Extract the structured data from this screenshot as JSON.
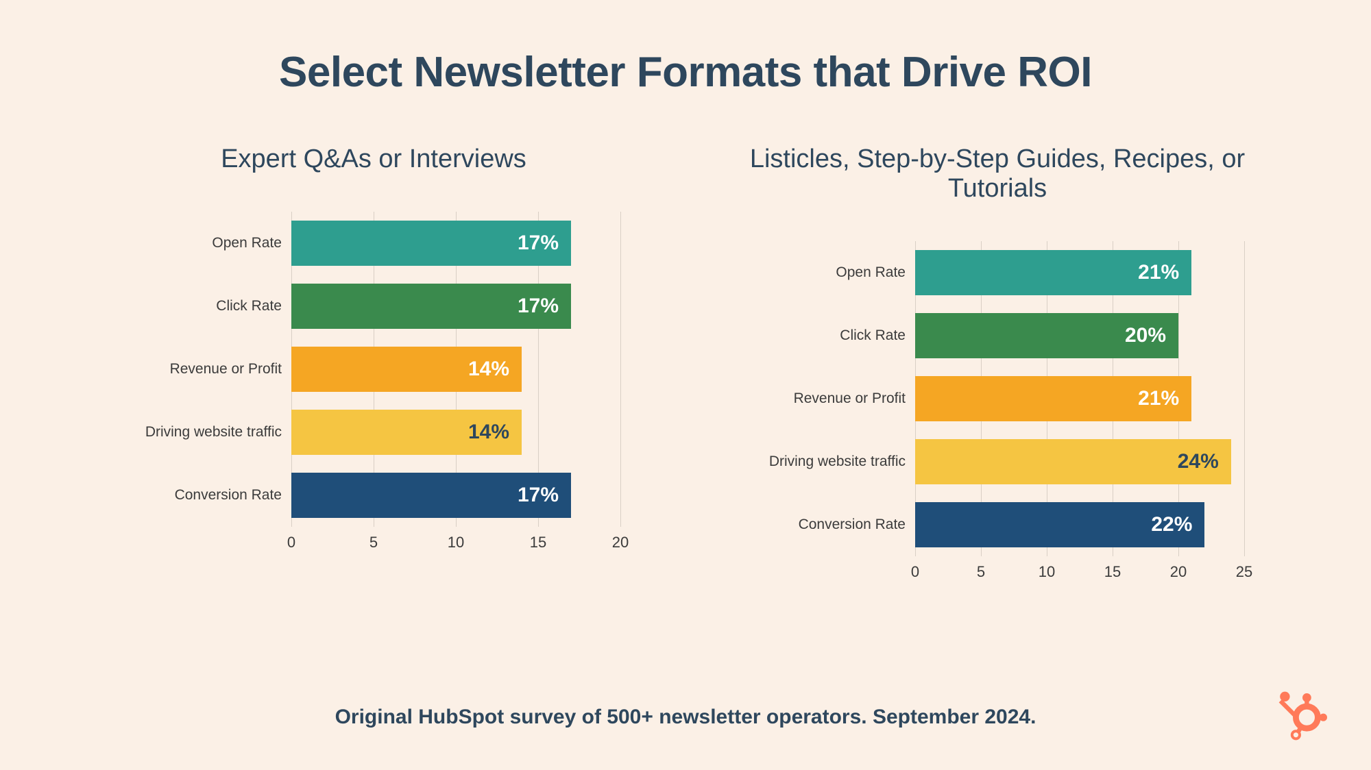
{
  "background_color": "#fbf0e6",
  "title": {
    "text": "Select Newsletter Formats that Drive ROI",
    "color": "#2e475d",
    "fontsize": 62,
    "fontweight": 700
  },
  "footer": {
    "text": "Original HubSpot survey of 500+ newsletter operators. September 2024.",
    "color": "#2e475d",
    "fontsize": 30
  },
  "logo": {
    "name": "hubspot-logo",
    "color": "#ff7a59"
  },
  "text_color": "#3b3b3b",
  "grid_color": "#d9cfc5",
  "category_labels": [
    "Open Rate",
    "Click Rate",
    "Revenue or Profit",
    "Driving website traffic",
    "Conversion Rate"
  ],
  "bar_colors": [
    "#2e9e8f",
    "#3a8a4d",
    "#f5a623",
    "#f5c542",
    "#1f4e79"
  ],
  "bar_label_colors": [
    "#ffffff",
    "#ffffff",
    "#ffffff",
    "#2e475d",
    "#ffffff"
  ],
  "charts": [
    {
      "type": "bar-horizontal",
      "title": "Expert Q&As or Interviews",
      "title_fontsize": 38,
      "xlim": [
        0,
        20
      ],
      "xtick_step": 5,
      "xticks": [
        0,
        5,
        10,
        15,
        20
      ],
      "values": [
        17,
        17,
        14,
        14,
        17
      ],
      "value_labels": [
        "17%",
        "17%",
        "14%",
        "14%",
        "17%"
      ]
    },
    {
      "type": "bar-horizontal",
      "title": "Listicles, Step-by-Step Guides, Recipes, or Tutorials",
      "title_fontsize": 38,
      "xlim": [
        0,
        25
      ],
      "xtick_step": 5,
      "xticks": [
        0,
        5,
        10,
        15,
        20,
        25
      ],
      "values": [
        21,
        20,
        21,
        24,
        22
      ],
      "value_labels": [
        "21%",
        "20%",
        "21%",
        "24%",
        "22%"
      ]
    }
  ]
}
